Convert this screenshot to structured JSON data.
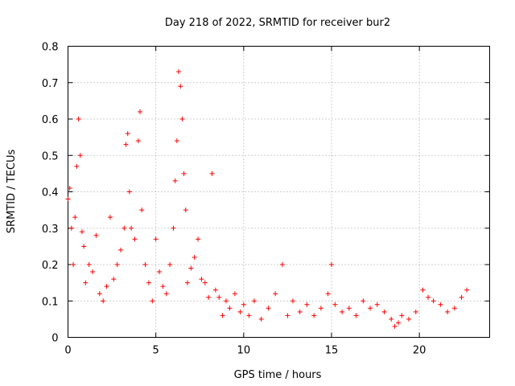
{
  "chart_data": {
    "type": "scatter",
    "title": "Day 218 of 2022, SRMTID for receiver bur2",
    "xlabel": "GPS time / hours",
    "ylabel": "SRMTID / TECUs",
    "xlim": [
      0,
      24
    ],
    "ylim": [
      0,
      0.8
    ],
    "xticks": [
      0,
      5,
      10,
      15,
      20
    ],
    "yticks": [
      0,
      0.1,
      0.2,
      0.3,
      0.4,
      0.5,
      0.6,
      0.7,
      0.8
    ],
    "grid": true,
    "marker": "+",
    "series": [
      {
        "name": "bur2",
        "color": "#ff0000",
        "x": [
          0.0,
          0.1,
          0.2,
          0.3,
          0.4,
          0.5,
          0.6,
          0.7,
          0.8,
          0.9,
          1.0,
          1.2,
          1.4,
          1.6,
          1.8,
          2.0,
          2.2,
          2.4,
          2.6,
          2.8,
          3.0,
          3.2,
          3.3,
          3.4,
          3.5,
          3.6,
          3.8,
          4.0,
          4.1,
          4.2,
          4.4,
          4.6,
          4.8,
          5.0,
          5.2,
          5.4,
          5.6,
          5.8,
          6.0,
          6.1,
          6.2,
          6.3,
          6.4,
          6.5,
          6.6,
          6.7,
          6.8,
          7.0,
          7.2,
          7.4,
          7.6,
          7.8,
          8.0,
          8.2,
          8.4,
          8.6,
          8.8,
          9.0,
          9.2,
          9.5,
          9.8,
          10.0,
          10.3,
          10.6,
          11.0,
          11.4,
          11.8,
          12.2,
          12.5,
          12.8,
          13.2,
          13.6,
          14.0,
          14.4,
          14.8,
          15.0,
          15.2,
          15.6,
          16.0,
          16.4,
          16.8,
          17.2,
          17.6,
          18.0,
          18.4,
          18.6,
          18.8,
          19.0,
          19.4,
          19.8,
          20.2,
          20.5,
          20.8,
          21.2,
          21.6,
          22.0,
          22.4,
          22.7
        ],
        "y": [
          0.38,
          0.41,
          0.3,
          0.2,
          0.33,
          0.47,
          0.6,
          0.5,
          0.29,
          0.25,
          0.15,
          0.2,
          0.18,
          0.28,
          0.12,
          0.1,
          0.14,
          0.33,
          0.16,
          0.2,
          0.24,
          0.3,
          0.53,
          0.56,
          0.4,
          0.3,
          0.27,
          0.54,
          0.62,
          0.35,
          0.2,
          0.15,
          0.1,
          0.27,
          0.18,
          0.14,
          0.12,
          0.2,
          0.3,
          0.43,
          0.54,
          0.73,
          0.69,
          0.6,
          0.45,
          0.35,
          0.15,
          0.19,
          0.22,
          0.27,
          0.16,
          0.15,
          0.11,
          0.45,
          0.13,
          0.11,
          0.06,
          0.1,
          0.08,
          0.12,
          0.07,
          0.09,
          0.06,
          0.1,
          0.05,
          0.08,
          0.12,
          0.2,
          0.06,
          0.1,
          0.07,
          0.09,
          0.06,
          0.08,
          0.12,
          0.2,
          0.09,
          0.07,
          0.08,
          0.06,
          0.1,
          0.08,
          0.09,
          0.07,
          0.05,
          0.03,
          0.04,
          0.06,
          0.05,
          0.07,
          0.13,
          0.11,
          0.1,
          0.09,
          0.07,
          0.08,
          0.11,
          0.13
        ]
      }
    ]
  }
}
